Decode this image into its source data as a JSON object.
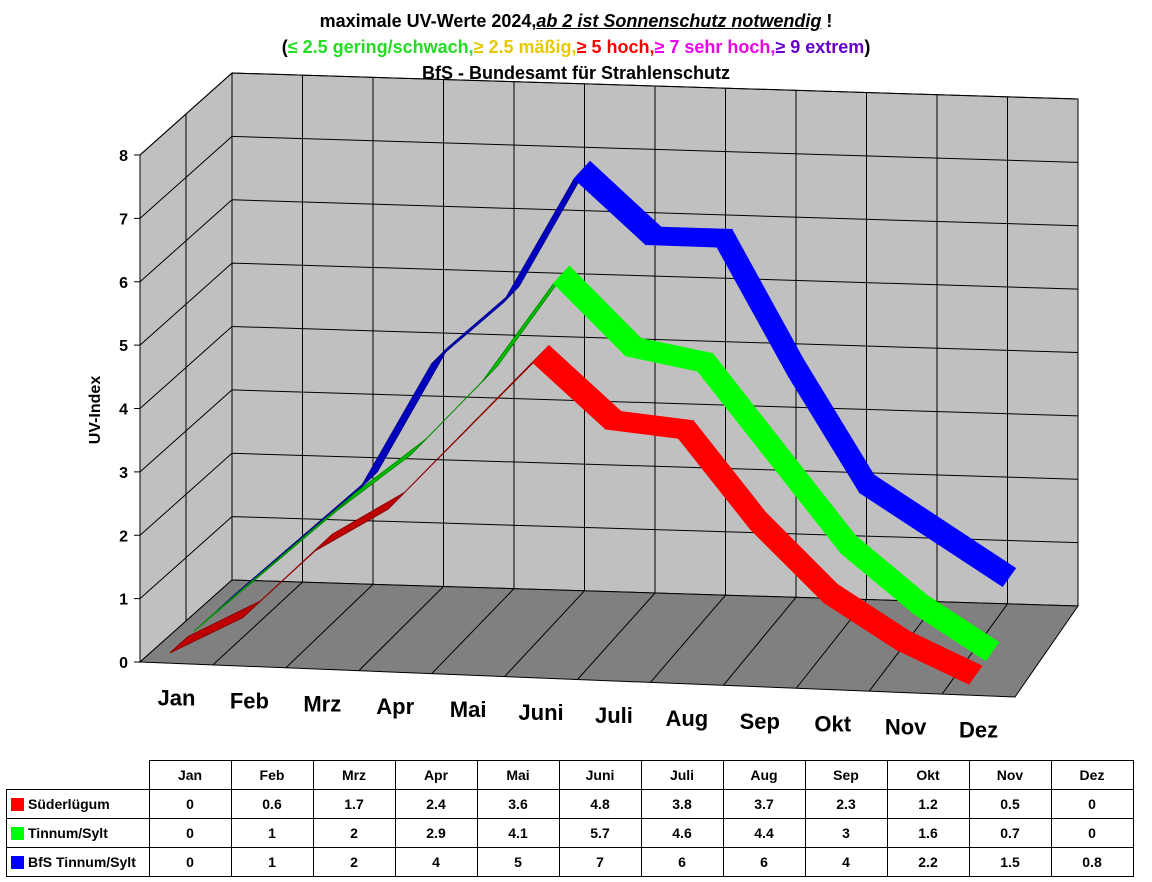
{
  "title": {
    "line1_prefix": "maximale UV-Werte 2024,",
    "line1_link": "ab 2 ist Sonnenschutz notwendig",
    "line1_suffix": " !",
    "line2": [
      {
        "text": "(",
        "color": "#000000"
      },
      {
        "text": "≤ 2.5 gering/schwach,",
        "color": "#22dd22"
      },
      {
        "text": "≥ 2.5 mäßig,",
        "color": "#e8c800"
      },
      {
        "text": "≥ 5 hoch,",
        "color": "#ff0000"
      },
      {
        "text": "≥ 7 sehr hoch,",
        "color": "#ee00ee"
      },
      {
        "text": "≥ 9 extrem",
        "color": "#6600cc"
      },
      {
        "text": ")",
        "color": "#000000"
      }
    ],
    "line3": "BfS - Bundesamt für Strahlenschutz"
  },
  "chart_data": {
    "type": "line",
    "style": "3d-ribbon",
    "ylabel": "UV-Index",
    "ylim": [
      0,
      8
    ],
    "yticks": [
      "0",
      "1",
      "2",
      "3",
      "4",
      "5",
      "6",
      "7",
      "8"
    ],
    "categories": [
      "Jan",
      "Feb",
      "Mrz",
      "Apr",
      "Mai",
      "Juni",
      "Juli",
      "Aug",
      "Sep",
      "Okt",
      "Nov",
      "Dez"
    ],
    "grid": true,
    "series": [
      {
        "name": "Süderlügum",
        "color": "#ff0000",
        "values": [
          0,
          0.6,
          1.7,
          2.4,
          3.6,
          4.8,
          3.8,
          3.7,
          2.3,
          1.2,
          0.5,
          0
        ]
      },
      {
        "name": "Tinnum/Sylt",
        "color": "#00ff00",
        "values": [
          0,
          1,
          2,
          2.9,
          4.1,
          5.7,
          4.6,
          4.4,
          3,
          1.6,
          0.7,
          0
        ]
      },
      {
        "name": "BfS Tinnum/Sylt",
        "color": "#0000ff",
        "values": [
          0,
          1,
          2,
          4,
          5,
          7,
          6,
          6,
          4,
          2.2,
          1.5,
          0.8
        ]
      }
    ]
  },
  "table": {
    "columns": [
      "Jan",
      "Feb",
      "Mrz",
      "Apr",
      "Mai",
      "Juni",
      "Juli",
      "Aug",
      "Sep",
      "Okt",
      "Nov",
      "Dez"
    ],
    "rows": [
      {
        "label": "Süderlügum",
        "color": "#ff0000",
        "cells": [
          "0",
          "0.6",
          "1.7",
          "2.4",
          "3.6",
          "4.8",
          "3.8",
          "3.7",
          "2.3",
          "1.2",
          "0.5",
          "0"
        ]
      },
      {
        "label": "Tinnum/Sylt",
        "color": "#00ff00",
        "cells": [
          "0",
          "1",
          "2",
          "2.9",
          "4.1",
          "5.7",
          "4.6",
          "4.4",
          "3",
          "1.6",
          "0.7",
          "0"
        ]
      },
      {
        "label": "BfS Tinnum/Sylt",
        "color": "#0000ff",
        "cells": [
          "0",
          "1",
          "2",
          "4",
          "5",
          "7",
          "6",
          "6",
          "4",
          "2.2",
          "1.5",
          "0.8"
        ]
      }
    ]
  }
}
